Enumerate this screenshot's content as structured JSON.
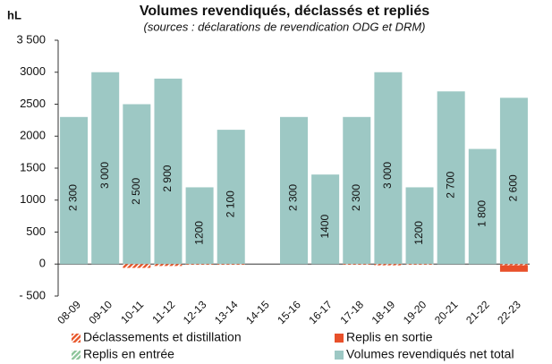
{
  "chart_data": {
    "type": "bar",
    "title": "Volumes revendiqués, déclassés et repliés",
    "subtitle": "(sources : déclarations de revendication ODG et DRM)",
    "y_label": "hL",
    "categories": [
      "08-09",
      "09-10",
      "10-11",
      "11-12",
      "12-13",
      "13-14",
      "14-15",
      "15-16",
      "16-17",
      "17-18",
      "18-19",
      "19-20",
      "20-21",
      "21-22",
      "22-23"
    ],
    "series": [
      {
        "name": "Volumes revendiqués net total",
        "color": "#9dc8c4",
        "hatch": false,
        "values": [
          2300,
          3000,
          2500,
          2900,
          1200,
          2100,
          null,
          2300,
          1400,
          2300,
          3000,
          1200,
          2700,
          1800,
          2600
        ],
        "value_labels": [
          "2 300",
          "3 000",
          "2 500",
          "2 900",
          "1200",
          "2 100",
          null,
          "2 300",
          "1400",
          "2 300",
          "3 000",
          "1200",
          "2 700",
          "1 800",
          "2 600"
        ]
      },
      {
        "name": "Déclassements et distillation",
        "color": "#e8562a",
        "hatch": true,
        "values": [
          0,
          0,
          -60,
          -30,
          -10,
          -10,
          0,
          0,
          0,
          -10,
          -20,
          -10,
          0,
          0,
          -20
        ]
      },
      {
        "name": "Replis en sortie",
        "color": "#e8502a",
        "hatch": false,
        "values": [
          0,
          0,
          0,
          0,
          0,
          0,
          0,
          0,
          0,
          0,
          0,
          0,
          0,
          0,
          -100
        ]
      },
      {
        "name": "Replis en entrée",
        "color": "#8cc49a",
        "hatch": true,
        "values": [
          0,
          0,
          0,
          0,
          0,
          0,
          0,
          0,
          0,
          0,
          0,
          0,
          0,
          0,
          0
        ]
      }
    ],
    "ylim": [
      -500,
      3500
    ],
    "yticks": [
      {
        "value": -500,
        "label": "- 500"
      },
      0,
      500,
      1000,
      1500,
      2000,
      2500,
      3000,
      {
        "value": 3500,
        "label": "3 500"
      }
    ]
  }
}
